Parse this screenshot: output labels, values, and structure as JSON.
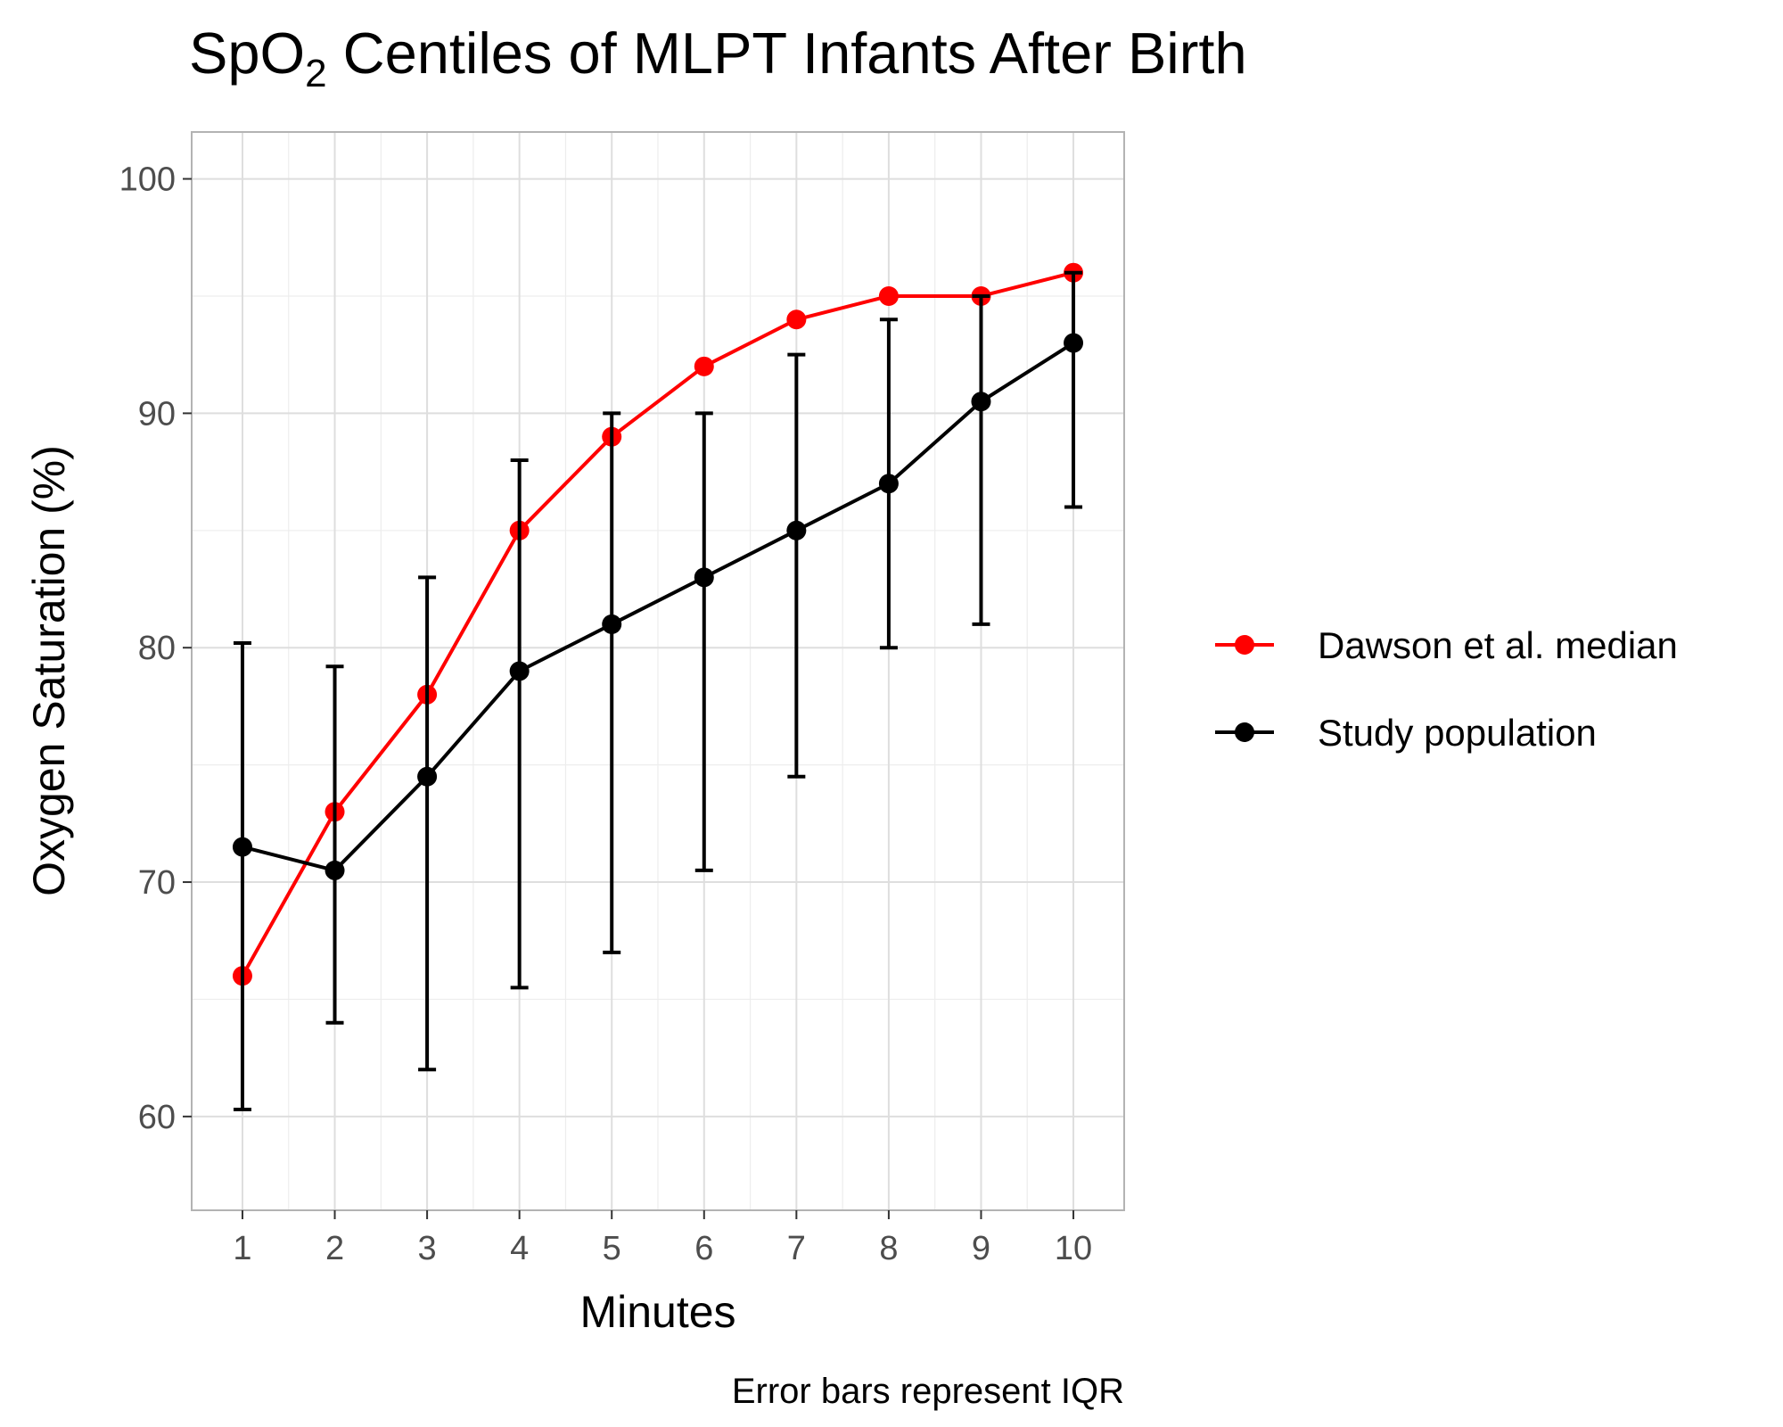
{
  "chart_data": {
    "type": "line",
    "title_main": "SpO",
    "title_sub": "2",
    "title_rest": " Centiles of MLPT Infants After Birth",
    "xlabel": "Minutes",
    "ylabel": "Oxygen Saturation (%)",
    "caption": "Error bars represent IQR",
    "x": [
      1,
      2,
      3,
      4,
      5,
      6,
      7,
      8,
      9,
      10
    ],
    "xticks": [
      "1",
      "2",
      "3",
      "4",
      "5",
      "6",
      "7",
      "8",
      "9",
      "10"
    ],
    "yticks": [
      "60",
      "70",
      "80",
      "90",
      "100"
    ],
    "ytick_values": [
      60,
      70,
      80,
      90,
      100
    ],
    "xlim": [
      0.45,
      10.55
    ],
    "ylim": [
      56,
      102
    ],
    "grid": true,
    "legend_position": "right",
    "series": [
      {
        "name": "Dawson et al. median",
        "color": "#ff0000",
        "values": [
          66,
          73,
          78,
          85,
          89,
          92,
          94,
          95,
          95,
          96
        ]
      },
      {
        "name": "Study population",
        "color": "#000000",
        "values": [
          71.5,
          70.5,
          74.5,
          79,
          81,
          83,
          85,
          87,
          90.5,
          93
        ],
        "iqr_low": [
          60.3,
          64,
          62,
          65.5,
          67,
          70.5,
          74.5,
          80,
          81,
          86
        ],
        "iqr_high": [
          80.2,
          79.2,
          83,
          88,
          90,
          90,
          92.5,
          94,
          95,
          96
        ]
      }
    ]
  }
}
